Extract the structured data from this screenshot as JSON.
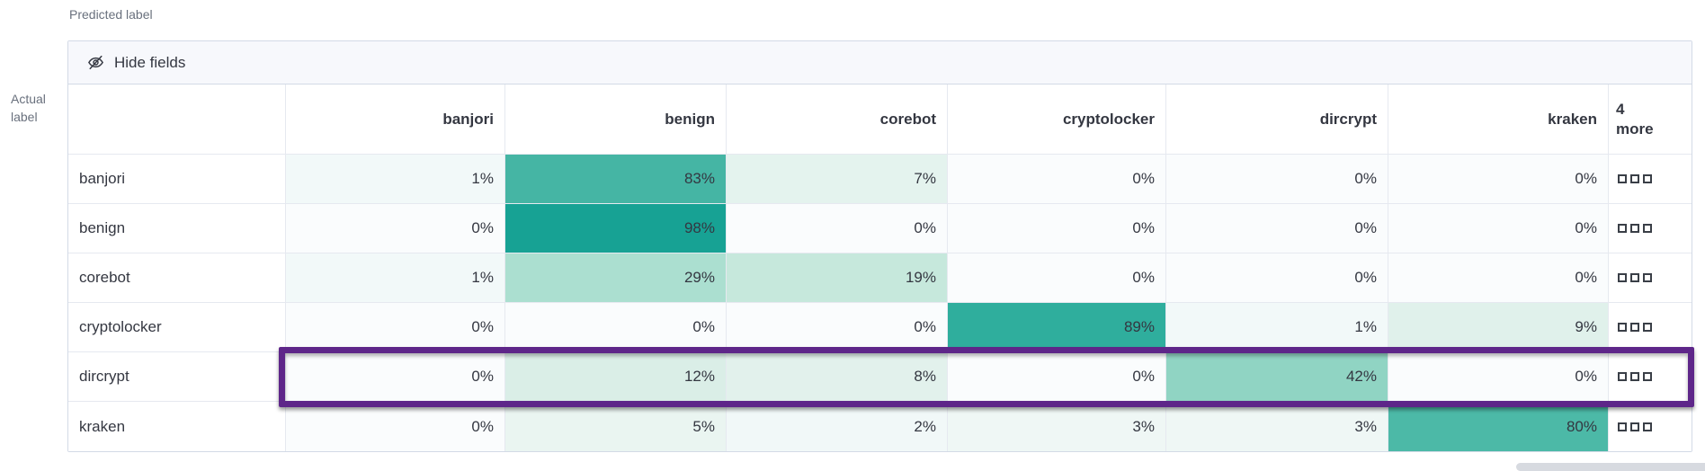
{
  "axis": {
    "predicted_label": "Predicted label",
    "actual_label": "Actual\nlabel"
  },
  "toolbar": {
    "hide_fields_label": "Hide fields"
  },
  "grid": {
    "corner": "",
    "columns": [
      "banjori",
      "benign",
      "corebot",
      "cryptolocker",
      "dircrypt",
      "kraken"
    ],
    "more_header": "4\nmore",
    "rows": [
      {
        "label": "banjori",
        "cells": [
          {
            "v": "1%",
            "bg": "#F2F9F9"
          },
          {
            "v": "83%",
            "bg": "#45B5A4"
          },
          {
            "v": "7%",
            "bg": "#E4F3EE"
          },
          {
            "v": "0%",
            "bg": "#FAFCFD"
          },
          {
            "v": "0%",
            "bg": "#FAFCFD"
          },
          {
            "v": "0%",
            "bg": "#FAFCFD"
          }
        ]
      },
      {
        "label": "benign",
        "cells": [
          {
            "v": "0%",
            "bg": "#FAFCFD"
          },
          {
            "v": "98%",
            "bg": "#17A294"
          },
          {
            "v": "0%",
            "bg": "#FAFCFD"
          },
          {
            "v": "0%",
            "bg": "#FAFCFD"
          },
          {
            "v": "0%",
            "bg": "#FAFCFD"
          },
          {
            "v": "0%",
            "bg": "#FAFCFD"
          }
        ]
      },
      {
        "label": "corebot",
        "cells": [
          {
            "v": "1%",
            "bg": "#F2F9F9"
          },
          {
            "v": "29%",
            "bg": "#ABDFD0"
          },
          {
            "v": "19%",
            "bg": "#C6E8DC"
          },
          {
            "v": "0%",
            "bg": "#FAFCFD"
          },
          {
            "v": "0%",
            "bg": "#FAFCFD"
          },
          {
            "v": "0%",
            "bg": "#FAFCFD"
          }
        ]
      },
      {
        "label": "cryptolocker",
        "cells": [
          {
            "v": "0%",
            "bg": "#FAFCFD"
          },
          {
            "v": "0%",
            "bg": "#FAFCFD"
          },
          {
            "v": "0%",
            "bg": "#FAFCFD"
          },
          {
            "v": "89%",
            "bg": "#2FAE9D"
          },
          {
            "v": "1%",
            "bg": "#F2F9F9"
          },
          {
            "v": "9%",
            "bg": "#E0F1EB"
          }
        ]
      },
      {
        "label": "dircrypt",
        "cells": [
          {
            "v": "0%",
            "bg": "#FAFCFD"
          },
          {
            "v": "12%",
            "bg": "#DAEEE7"
          },
          {
            "v": "8%",
            "bg": "#E2F1EC"
          },
          {
            "v": "0%",
            "bg": "#FAFCFD"
          },
          {
            "v": "42%",
            "bg": "#90D4C3"
          },
          {
            "v": "0%",
            "bg": "#FAFCFD"
          }
        ]
      },
      {
        "label": "kraken",
        "cells": [
          {
            "v": "0%",
            "bg": "#FAFCFD"
          },
          {
            "v": "5%",
            "bg": "#EAF5F1"
          },
          {
            "v": "2%",
            "bg": "#F1F8F8"
          },
          {
            "v": "3%",
            "bg": "#EFF7F5"
          },
          {
            "v": "3%",
            "bg": "#EFF7F5"
          },
          {
            "v": "80%",
            "bg": "#4CB9A7"
          }
        ]
      }
    ]
  },
  "annotation": {
    "highlighted_row": "dircrypt",
    "color": "#5E2689"
  },
  "colors": {
    "accent_teal": "#17A294",
    "header_bg": "#F5F7FB",
    "toolbar_bg": "#F7F8FC",
    "outer_border": "#D3DAE6",
    "inner_border": "#E6E9F0",
    "text": "#343741",
    "muted_text": "#69707D",
    "scrollbar": "#D7DAE0"
  },
  "chart_data": {
    "type": "heatmap",
    "title": "",
    "xlabel": "Predicted label",
    "ylabel": "Actual label",
    "x_categories": [
      "banjori",
      "benign",
      "corebot",
      "cryptolocker",
      "dircrypt",
      "kraken"
    ],
    "y_categories": [
      "banjori",
      "benign",
      "corebot",
      "cryptolocker",
      "dircrypt",
      "kraken"
    ],
    "values_percent": [
      [
        1,
        83,
        7,
        0,
        0,
        0
      ],
      [
        0,
        98,
        0,
        0,
        0,
        0
      ],
      [
        1,
        29,
        19,
        0,
        0,
        0
      ],
      [
        0,
        0,
        0,
        89,
        1,
        9
      ],
      [
        0,
        12,
        8,
        0,
        42,
        0
      ],
      [
        0,
        5,
        2,
        3,
        3,
        80
      ]
    ],
    "hidden_columns_badge": "4 more",
    "color_scale": {
      "min_color": "#FFFFFF",
      "max_color": "#17A294"
    },
    "highlighted_row": "dircrypt"
  }
}
